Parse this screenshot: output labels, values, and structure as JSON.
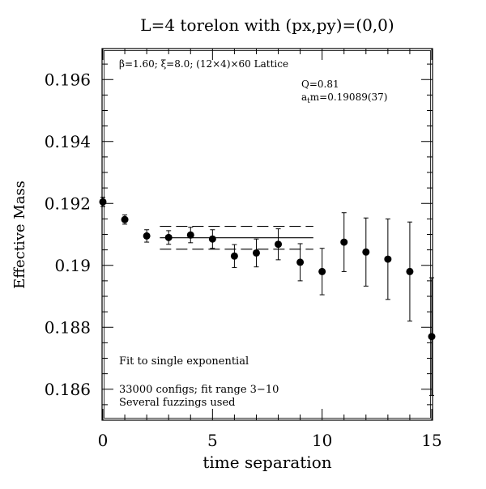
{
  "chart_data": {
    "type": "scatter",
    "title": "L=4 torelon with (px,py)=(0,0)",
    "xlabel": "time separation",
    "ylabel": "Effective Mass",
    "xlim": [
      0,
      15
    ],
    "ylim": [
      0.185,
      0.197
    ],
    "x_ticks": [
      0,
      5,
      10,
      15
    ],
    "x_tick_labels": [
      "0",
      "5",
      "10",
      "15"
    ],
    "y_ticks": [
      0.186,
      0.188,
      0.19,
      0.192,
      0.194,
      0.196
    ],
    "y_tick_labels": [
      "0.186",
      "0.188",
      "0.19",
      "0.192",
      "0.194",
      "0.196"
    ],
    "grid": false,
    "points": [
      {
        "x": 0,
        "y": 0.19205,
        "err": 0.00015
      },
      {
        "x": 1,
        "y": 0.19148,
        "err": 0.00015
      },
      {
        "x": 2,
        "y": 0.19095,
        "err": 0.0002
      },
      {
        "x": 3,
        "y": 0.1909,
        "err": 0.00022
      },
      {
        "x": 4,
        "y": 0.19098,
        "err": 0.00025
      },
      {
        "x": 5,
        "y": 0.19085,
        "err": 0.0003
      },
      {
        "x": 6,
        "y": 0.1903,
        "err": 0.00037
      },
      {
        "x": 7,
        "y": 0.1904,
        "err": 0.00045
      },
      {
        "x": 8,
        "y": 0.19068,
        "err": 0.0005
      },
      {
        "x": 9,
        "y": 0.1901,
        "err": 0.0006
      },
      {
        "x": 10,
        "y": 0.1898,
        "err": 0.00075
      },
      {
        "x": 11,
        "y": 0.19075,
        "err": 0.00095
      },
      {
        "x": 12,
        "y": 0.19043,
        "err": 0.0011
      },
      {
        "x": 13,
        "y": 0.1902,
        "err": 0.0013
      },
      {
        "x": 14,
        "y": 0.1898,
        "err": 0.0016
      },
      {
        "x": 15,
        "y": 0.1877,
        "err": 0.0019
      }
    ],
    "fit": {
      "x_range": [
        2.6,
        9.6
      ],
      "value": 0.19089,
      "error": 0.00037
    },
    "annotations": {
      "lattice_prefix": "β=1.60; ξ=8.0; (12×4)×60 Lattice",
      "q_value": "Q=0.81",
      "mass_prefix": "a",
      "mass_sub": "t",
      "mass_value": "m=0.19089(37)",
      "fit_note": "Fit to single exponential",
      "configs_note": "33000 configs; fit range 3−10",
      "fuzz_note": "Several fuzzings used"
    }
  }
}
